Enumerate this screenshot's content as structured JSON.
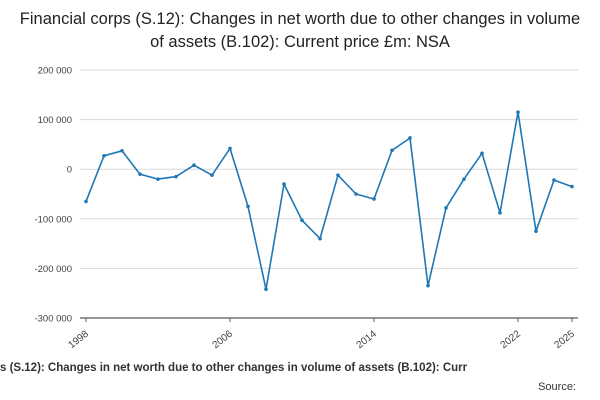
{
  "title": "Financial corps (S.12): Changes in net worth due to other changes in volume of assets (B.102): Current price £m: NSA",
  "footer": {
    "caption": "s (S.12): Changes in net worth due to other changes in volume of assets (B.102): Curr",
    "source_label": "Source:"
  },
  "colors": {
    "line": "#1f77b4",
    "grid": "#d9d9d9",
    "axis": "#58595b",
    "tick_text": "#414042"
  },
  "chart_data": {
    "type": "line",
    "title": "Financial corps (S.12): Changes in net worth due to other changes in volume of assets (B.102): Current price £m: NSA",
    "xlabel": "",
    "ylabel": "",
    "grid": true,
    "legend": "none",
    "marker": "point",
    "ylim": [
      -300000,
      200000
    ],
    "yticks": [
      200000,
      100000,
      0,
      -100000,
      -200000,
      -300000
    ],
    "ytick_labels": [
      "200 000",
      "100 000",
      "0",
      "-100 000",
      "-200 000",
      "-300 000"
    ],
    "xticks": [
      1998,
      2006,
      2014,
      2022,
      2025
    ],
    "xtick_labels": [
      "1998",
      "2006",
      "2014",
      "2022",
      "2025"
    ],
    "x": [
      1998,
      1999,
      2000,
      2001,
      2002,
      2003,
      2004,
      2005,
      2006,
      2007,
      2008,
      2009,
      2010,
      2011,
      2012,
      2013,
      2014,
      2015,
      2016,
      2017,
      2018,
      2019,
      2020,
      2021,
      2022,
      2023,
      2024,
      2025
    ],
    "values": [
      -65000,
      27000,
      37000,
      -10000,
      -20000,
      -15000,
      8000,
      -12000,
      42000,
      -75000,
      -242000,
      -30000,
      -103000,
      -140000,
      -12000,
      -50000,
      -60000,
      38000,
      63000,
      -235000,
      -78000,
      -20000,
      32000,
      -88000,
      115000,
      -125000,
      -22000,
      -35000
    ]
  }
}
